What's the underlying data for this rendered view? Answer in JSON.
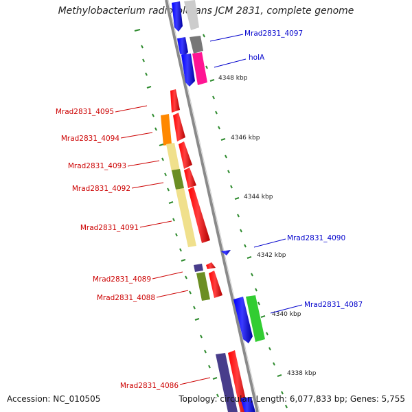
{
  "title": "Methylobacterium radiotolerans JCM 2831, complete genome",
  "footer": {
    "accession": "Accession: NC_010505",
    "topology": "Topology: circular; Length: 6,077,833 bp; Genes: 5,755"
  },
  "colors": {
    "backbone": "#8a8a8a",
    "tick": "#2e8b2e",
    "left_label": "#cc0000",
    "right_label": "#0000cc"
  },
  "scale_labels": [
    "4348 kbp",
    "4346 kbp",
    "4344 kbp",
    "4342 kbp",
    "4340 kbp",
    "4338 kbp"
  ],
  "left_labels": [
    "Mrad2831_4095",
    "Mrad2831_4094",
    "Mrad2831_4093",
    "Mrad2831_4092",
    "Mrad2831_4091",
    "Mrad2831_4089",
    "Mrad2831_4088",
    "Mrad2831_4086"
  ],
  "right_labels": [
    "Mrad2831_4097",
    "holA",
    "Mrad2831_4090",
    "Mrad2831_4087"
  ],
  "features": [
    {
      "gene": "Mrad2831_4095",
      "strand": "reverse",
      "color": "#ff0000"
    },
    {
      "gene": "Mrad2831_4094",
      "strand": "reverse",
      "color": "#ff0000"
    },
    {
      "gene": "Mrad2831_4094",
      "strand": "reverse",
      "color": "#ff8800"
    },
    {
      "gene": "Mrad2831_4093",
      "strand": "reverse",
      "color": "#ff0000"
    },
    {
      "gene": "Mrad2831_4093",
      "strand": "reverse",
      "color": "#f0e08c"
    },
    {
      "gene": "Mrad2831_4092",
      "strand": "reverse",
      "color": "#ff0000"
    },
    {
      "gene": "Mrad2831_4092",
      "strand": "reverse",
      "color": "#6b8e23"
    },
    {
      "gene": "Mrad2831_4091",
      "strand": "reverse",
      "color": "#ff0000"
    },
    {
      "gene": "Mrad2831_4091",
      "strand": "reverse",
      "color": "#f0e08c"
    },
    {
      "gene": "Mrad2831_4089",
      "strand": "reverse",
      "color": "#ff0000"
    },
    {
      "gene": "Mrad2831_4089",
      "strand": "reverse",
      "color": "#483d8b"
    },
    {
      "gene": "Mrad2831_4088",
      "strand": "reverse",
      "color": "#ff0000"
    },
    {
      "gene": "Mrad2831_4088",
      "strand": "reverse",
      "color": "#6b8e23"
    },
    {
      "gene": "Mrad2831_4086",
      "strand": "reverse",
      "color": "#ff0000"
    },
    {
      "gene": "Mrad2831_4086",
      "strand": "reverse",
      "color": "#483d8b"
    },
    {
      "gene": "Mrad2831_4097",
      "strand": "forward",
      "color": "#0000ff"
    },
    {
      "gene": "Mrad2831_4097",
      "strand": "forward",
      "color": "#777777"
    },
    {
      "gene": "holA",
      "strand": "forward",
      "color": "#0000ff"
    },
    {
      "gene": "holA",
      "strand": "forward",
      "color": "#ff1493"
    },
    {
      "gene": "Mrad2831_4090",
      "strand": "forward",
      "color": "#0000ff"
    },
    {
      "gene": "Mrad2831_4087",
      "strand": "forward",
      "color": "#0000ff"
    },
    {
      "gene": "Mrad2831_4087",
      "strand": "forward",
      "color": "#32cd32"
    }
  ]
}
